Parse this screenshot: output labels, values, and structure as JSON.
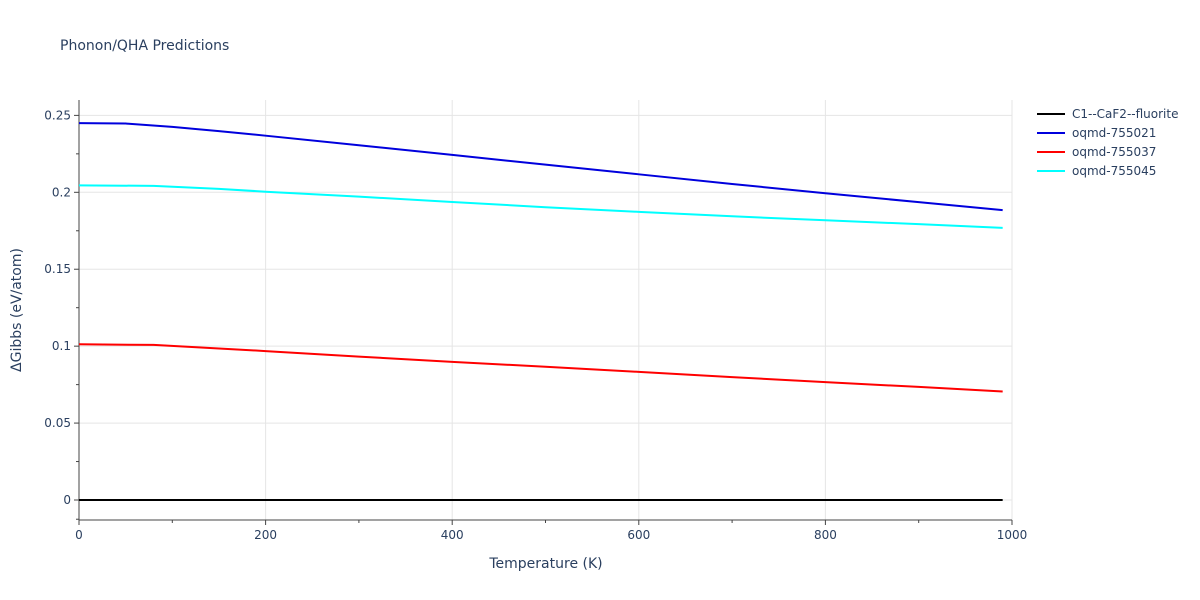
{
  "chart_data": {
    "type": "line",
    "title": "Phonon/QHA Predictions",
    "xlabel": "Temperature (K)",
    "ylabel": "ΔGibbs (eV/atom)",
    "xlim": [
      0,
      1000
    ],
    "ylim": [
      -0.013,
      0.26
    ],
    "x_ticks": [
      0,
      200,
      400,
      600,
      800,
      1000
    ],
    "x_minor_ticks": [
      100,
      300,
      500,
      700,
      900
    ],
    "y_ticks": [
      0,
      0.05,
      0.1,
      0.15,
      0.2,
      0.25
    ],
    "y_tick_labels": [
      "0",
      "0.05",
      "0.1",
      "0.15",
      "0.2",
      "0.25"
    ],
    "grid": true,
    "legend_position": "top-right",
    "series": [
      {
        "name": "C1--CaF2--fluorite",
        "color": "#000000",
        "x": [
          0,
          990
        ],
        "y": [
          0,
          0
        ]
      },
      {
        "name": "oqmd-755021",
        "color": "#0000dd",
        "x": [
          0,
          50,
          100,
          150,
          200,
          300,
          400,
          500,
          600,
          700,
          800,
          900,
          990
        ],
        "y": [
          0.245,
          0.2447,
          0.2425,
          0.2398,
          0.2368,
          0.2306,
          0.2243,
          0.218,
          0.2117,
          0.2054,
          0.1994,
          0.1936,
          0.1884
        ]
      },
      {
        "name": "oqmd-755037",
        "color": "#ff0000",
        "x": [
          0,
          80,
          150,
          200,
          300,
          400,
          500,
          600,
          700,
          800,
          900,
          990
        ],
        "y": [
          0.1012,
          0.1008,
          0.0985,
          0.0968,
          0.0932,
          0.0898,
          0.0866,
          0.0833,
          0.0799,
          0.0766,
          0.0735,
          0.0705
        ]
      },
      {
        "name": "oqmd-755045",
        "color": "#00ffff",
        "x": [
          0,
          80,
          150,
          200,
          300,
          400,
          500,
          600,
          700,
          800,
          900,
          990
        ],
        "y": [
          0.2045,
          0.2042,
          0.2022,
          0.2004,
          0.1972,
          0.1937,
          0.1903,
          0.1873,
          0.1844,
          0.1818,
          0.1793,
          0.1769
        ]
      }
    ]
  }
}
